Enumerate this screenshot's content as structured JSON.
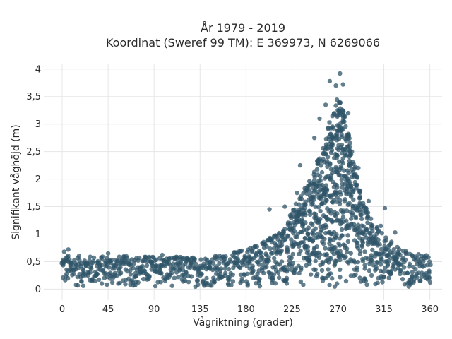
{
  "chart_data": {
    "type": "scatter",
    "title": "År 1979 - 2019",
    "subtitle": "Koordinat (Sweref 99 TM): E 369973, N 6269066",
    "xlabel": "Vågriktning (grader)",
    "ylabel": "Signifikant våghöjd (m)",
    "xlim": [
      -18,
      372
    ],
    "ylim": [
      -0.2,
      4.1
    ],
    "xticks": [
      0,
      45,
      90,
      135,
      180,
      225,
      270,
      315,
      360
    ],
    "xtick_labels": [
      "0",
      "45",
      "90",
      "135",
      "180",
      "225",
      "270",
      "315",
      "360"
    ],
    "yticks": [
      0,
      0.5,
      1,
      1.5,
      2,
      2.5,
      3,
      3.5,
      4
    ],
    "ytick_labels": [
      "0",
      "0,5",
      "1",
      "1,5",
      "2",
      "2,5",
      "3",
      "3,5",
      "4"
    ],
    "grid": true,
    "color": "#2f5468",
    "envelope": [
      {
        "x": 0,
        "y": 0.62
      },
      {
        "x": 20,
        "y": 0.6
      },
      {
        "x": 45,
        "y": 0.6
      },
      {
        "x": 90,
        "y": 0.6
      },
      {
        "x": 135,
        "y": 0.58
      },
      {
        "x": 160,
        "y": 0.62
      },
      {
        "x": 180,
        "y": 0.75
      },
      {
        "x": 200,
        "y": 0.9
      },
      {
        "x": 215,
        "y": 1.1
      },
      {
        "x": 225,
        "y": 1.4
      },
      {
        "x": 240,
        "y": 1.9
      },
      {
        "x": 255,
        "y": 2.6
      },
      {
        "x": 265,
        "y": 3.2
      },
      {
        "x": 270,
        "y": 3.6
      },
      {
        "x": 275,
        "y": 3.3
      },
      {
        "x": 282,
        "y": 2.7
      },
      {
        "x": 290,
        "y": 1.9
      },
      {
        "x": 300,
        "y": 1.35
      },
      {
        "x": 315,
        "y": 1.0
      },
      {
        "x": 330,
        "y": 0.75
      },
      {
        "x": 345,
        "y": 0.65
      },
      {
        "x": 360,
        "y": 0.62
      }
    ],
    "outliers": [
      {
        "x": 272,
        "y": 3.92
      },
      {
        "x": 262,
        "y": 3.78
      },
      {
        "x": 268,
        "y": 3.7
      },
      {
        "x": 275,
        "y": 3.72
      },
      {
        "x": 258,
        "y": 3.35
      },
      {
        "x": 280,
        "y": 3.2
      },
      {
        "x": 247,
        "y": 2.75
      },
      {
        "x": 252,
        "y": 3.1
      },
      {
        "x": 290,
        "y": 2.2
      },
      {
        "x": 233,
        "y": 2.25
      },
      {
        "x": 230,
        "y": 1.75
      },
      {
        "x": 218,
        "y": 1.5
      },
      {
        "x": 203,
        "y": 1.45
      },
      {
        "x": 316,
        "y": 1.47
      },
      {
        "x": 300,
        "y": 1.6
      },
      {
        "x": 6,
        "y": 0.72
      },
      {
        "x": 2,
        "y": 0.68
      },
      {
        "x": 45,
        "y": 0.65
      },
      {
        "x": 98,
        "y": 0.62
      },
      {
        "x": 150,
        "y": 0.6
      },
      {
        "x": 326,
        "y": 1.03
      },
      {
        "x": 312,
        "y": 1.15
      }
    ]
  }
}
